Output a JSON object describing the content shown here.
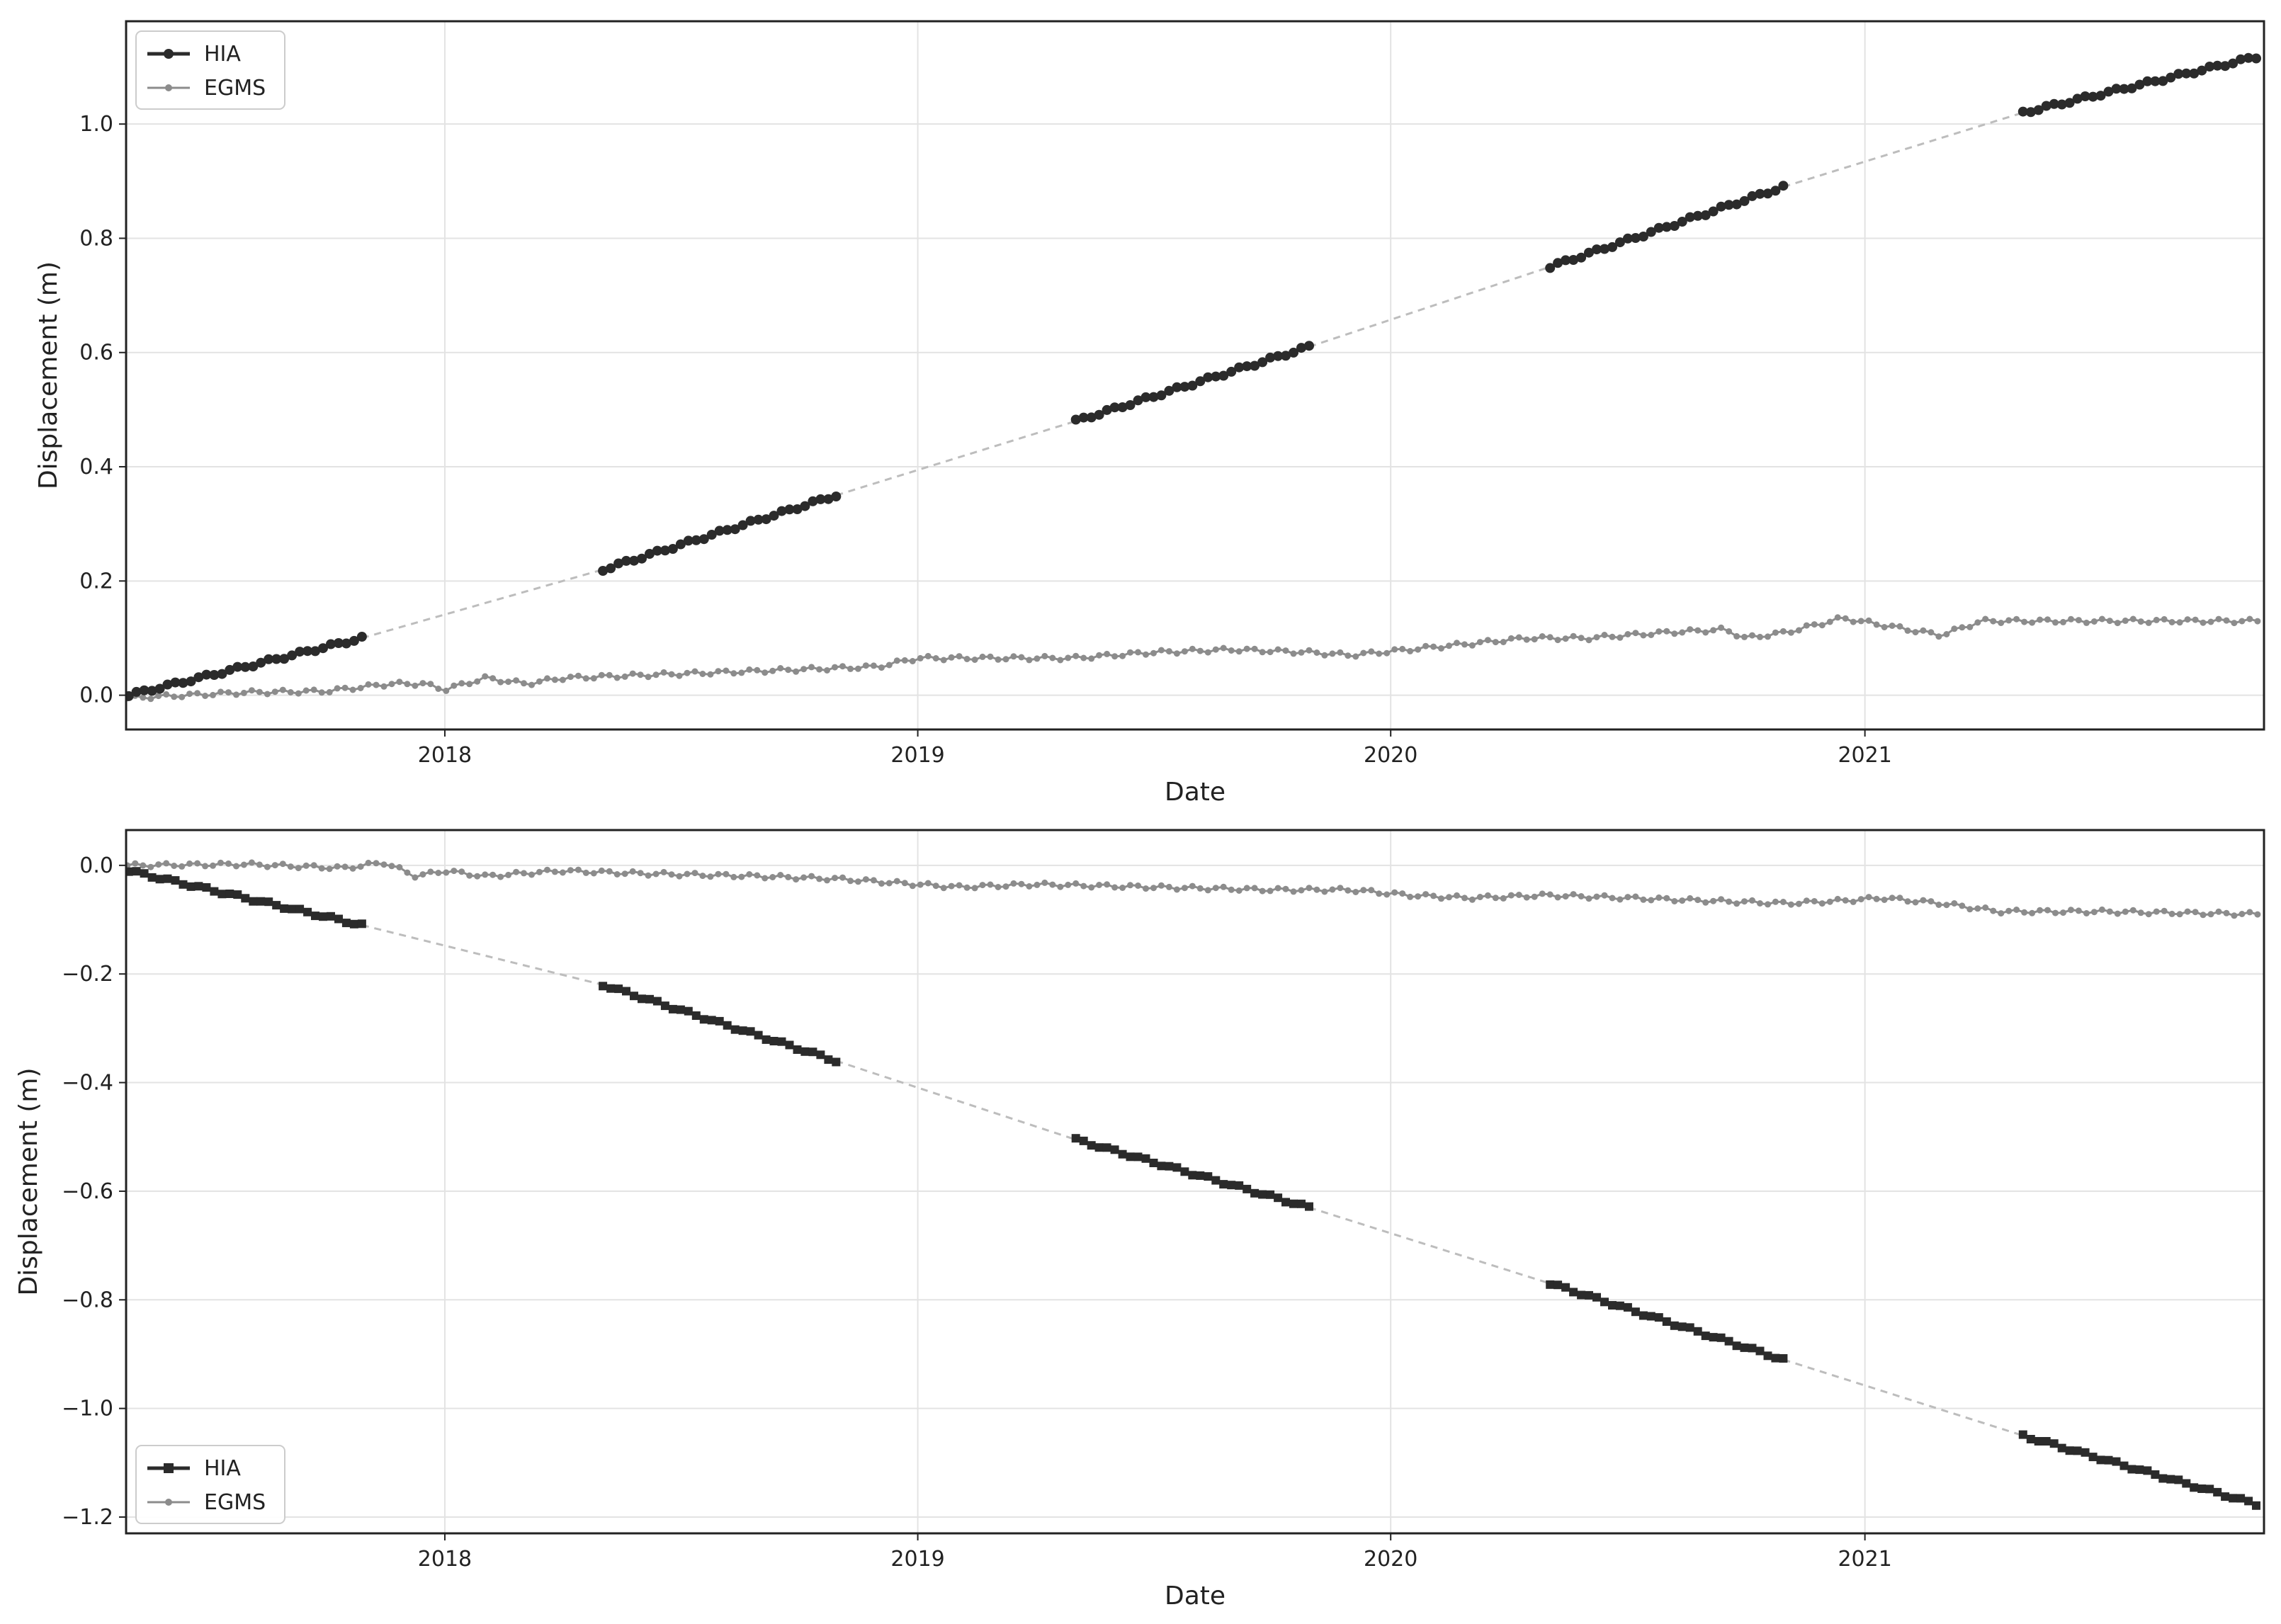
{
  "chart_data": [
    {
      "type": "line",
      "title": "",
      "xlabel": "Date",
      "ylabel": "Displacement (m)",
      "xlim": [
        "2017-04-30",
        "2021-11-05"
      ],
      "ylim": [
        -0.06,
        1.18
      ],
      "xticks": [
        "2018",
        "2019",
        "2020",
        "2021"
      ],
      "yticks": [
        "0.0",
        "0.2",
        "0.4",
        "0.6",
        "0.8",
        "1.0"
      ],
      "grid": true,
      "legend": "top-left",
      "hia_gap_style": "dashed",
      "series": [
        {
          "name": "HIA",
          "color": "#2b2b2b",
          "marker": "circle",
          "segments": [
            {
              "start": "2017-05-02",
              "end": "2017-10-29",
              "y0": 0.0,
              "y1": 0.1
            },
            {
              "start": "2018-05-03",
              "end": "2018-10-30",
              "y0": 0.22,
              "y1": 0.35
            },
            {
              "start": "2019-05-03",
              "end": "2019-10-30",
              "y0": 0.48,
              "y1": 0.61
            },
            {
              "start": "2020-05-03",
              "end": "2020-10-30",
              "y0": 0.75,
              "y1": 0.89
            },
            {
              "start": "2021-05-03",
              "end": "2021-11-04",
              "y0": 1.02,
              "y1": 1.12
            }
          ]
        },
        {
          "name": "EGMS",
          "color": "#8c8c8c",
          "marker": "circle",
          "points": [
            [
              "2017-05-01",
              -0.005
            ],
            [
              "2017-06-15",
              0.0
            ],
            [
              "2017-08-01",
              0.005
            ],
            [
              "2017-10-01",
              0.007
            ],
            [
              "2017-11-20",
              0.02
            ],
            [
              "2017-12-15",
              0.02
            ],
            [
              "2018-01-01",
              0.01
            ],
            [
              "2018-02-01",
              0.03
            ],
            [
              "2018-03-05",
              0.02
            ],
            [
              "2018-04-01",
              0.03
            ],
            [
              "2018-06-01",
              0.035
            ],
            [
              "2018-08-01",
              0.04
            ],
            [
              "2018-10-01",
              0.045
            ],
            [
              "2018-12-01",
              0.05
            ],
            [
              "2019-01-01",
              0.065
            ],
            [
              "2019-03-01",
              0.065
            ],
            [
              "2019-05-01",
              0.065
            ],
            [
              "2019-07-01",
              0.075
            ],
            [
              "2019-09-01",
              0.08
            ],
            [
              "2019-11-01",
              0.075
            ],
            [
              "2019-12-01",
              0.07
            ],
            [
              "2020-01-15",
              0.08
            ],
            [
              "2020-03-01",
              0.09
            ],
            [
              "2020-04-15",
              0.1
            ],
            [
              "2020-06-01",
              0.1
            ],
            [
              "2020-08-01",
              0.11
            ],
            [
              "2020-09-15",
              0.115
            ],
            [
              "2020-10-01",
              0.1
            ],
            [
              "2020-11-01",
              0.11
            ],
            [
              "2020-12-15",
              0.135
            ],
            [
              "2021-03-01",
              0.105
            ],
            [
              "2021-04-01",
              0.13
            ],
            [
              "2021-06-01",
              0.13
            ],
            [
              "2021-08-01",
              0.13
            ],
            [
              "2021-11-04",
              0.13
            ]
          ]
        }
      ]
    },
    {
      "type": "line",
      "title": "",
      "xlabel": "Date",
      "ylabel": "Displacement (m)",
      "xlim": [
        "2017-04-30",
        "2021-11-05"
      ],
      "ylim": [
        -1.23,
        0.065
      ],
      "xticks": [
        "2018",
        "2019",
        "2020",
        "2021"
      ],
      "yticks": [
        "0.0",
        "−0.2",
        "−0.4",
        "−0.6",
        "−0.8",
        "−1.0",
        "−1.2"
      ],
      "grid": true,
      "legend": "bottom-left",
      "hia_gap_style": "dashed",
      "series": [
        {
          "name": "HIA",
          "color": "#2b2b2b",
          "marker": "square",
          "segments": [
            {
              "start": "2017-05-02",
              "end": "2017-10-29",
              "y0": -0.01,
              "y1": -0.11
            },
            {
              "start": "2018-05-03",
              "end": "2018-10-30",
              "y0": -0.22,
              "y1": -0.36
            },
            {
              "start": "2019-05-03",
              "end": "2019-10-30",
              "y0": -0.505,
              "y1": -0.63
            },
            {
              "start": "2020-05-03",
              "end": "2020-10-30",
              "y0": -0.77,
              "y1": -0.91
            },
            {
              "start": "2021-05-03",
              "end": "2021-11-04",
              "y0": -1.05,
              "y1": -1.18
            }
          ]
        },
        {
          "name": "EGMS",
          "color": "#8c8c8c",
          "marker": "circle",
          "points": [
            [
              "2017-05-01",
              0.0
            ],
            [
              "2017-08-01",
              0.002
            ],
            [
              "2017-10-15",
              -0.005
            ],
            [
              "2017-11-15",
              0.005
            ],
            [
              "2017-12-10",
              -0.02
            ],
            [
              "2018-01-01",
              -0.01
            ],
            [
              "2018-02-01",
              -0.02
            ],
            [
              "2018-03-01",
              -0.015
            ],
            [
              "2018-04-01",
              -0.01
            ],
            [
              "2018-06-01",
              -0.015
            ],
            [
              "2018-09-01",
              -0.02
            ],
            [
              "2018-11-01",
              -0.025
            ],
            [
              "2019-01-01",
              -0.035
            ],
            [
              "2019-02-01",
              -0.04
            ],
            [
              "2019-04-01",
              -0.035
            ],
            [
              "2019-07-01",
              -0.04
            ],
            [
              "2019-10-01",
              -0.045
            ],
            [
              "2019-12-01",
              -0.045
            ],
            [
              "2020-01-15",
              -0.055
            ],
            [
              "2020-03-01",
              -0.06
            ],
            [
              "2020-05-01",
              -0.055
            ],
            [
              "2020-07-01",
              -0.06
            ],
            [
              "2020-09-01",
              -0.065
            ],
            [
              "2020-11-01",
              -0.07
            ],
            [
              "2020-12-15",
              -0.065
            ],
            [
              "2021-01-15",
              -0.06
            ],
            [
              "2021-03-01",
              -0.07
            ],
            [
              "2021-04-15",
              -0.085
            ],
            [
              "2021-07-01",
              -0.085
            ],
            [
              "2021-11-04",
              -0.09
            ]
          ]
        }
      ]
    }
  ]
}
